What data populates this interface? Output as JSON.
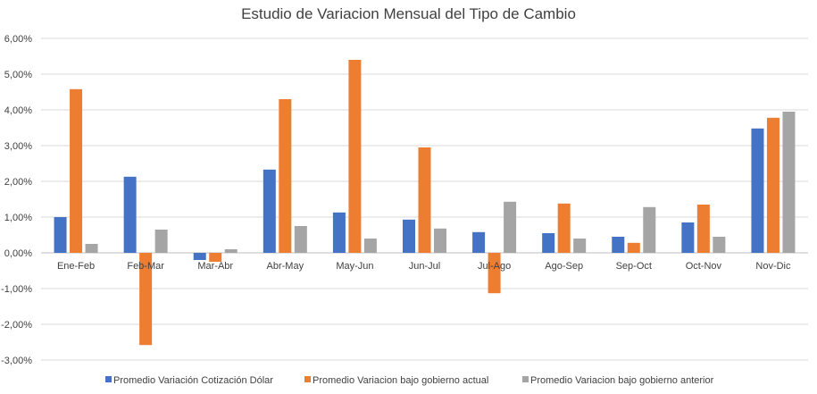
{
  "chart_data": {
    "type": "bar",
    "title": "Estudio de Variacion Mensual del Tipo de Cambio",
    "xlabel": "",
    "ylabel": "",
    "categories": [
      "Ene-Feb",
      "Feb-Mar",
      "Mar-Abr",
      "Abr-May",
      "May-Jun",
      "Jun-Jul",
      "Jul-Ago",
      "Ago-Sep",
      "Sep-Oct",
      "Oct-Nov",
      "Nov-Dic"
    ],
    "series": [
      {
        "name": "Promedio Variación Cotización Dólar",
        "color": "#4472C4",
        "values": [
          0.01,
          0.0213,
          -0.002,
          0.0233,
          0.0113,
          0.0093,
          0.0058,
          0.0055,
          0.0045,
          0.0085,
          0.0348
        ]
      },
      {
        "name": "Promedio Variacion bajo gobierno actual",
        "color": "#ED7D31",
        "values": [
          0.0458,
          -0.0258,
          -0.0025,
          0.043,
          0.054,
          0.0295,
          -0.0113,
          0.0138,
          0.0028,
          0.0135,
          0.0378
        ]
      },
      {
        "name": "Promedio Variacion bajo gobierno anterior",
        "color": "#A5A5A5",
        "values": [
          0.0025,
          0.0065,
          0.001,
          0.0075,
          0.004,
          0.0068,
          0.0143,
          0.004,
          0.0128,
          0.0045,
          0.0395
        ]
      }
    ],
    "ylim": [
      -0.03,
      0.06
    ],
    "yticks": [
      0.06,
      0.05,
      0.04,
      0.03,
      0.02,
      0.01,
      0.0,
      -0.01,
      -0.02,
      -0.03
    ],
    "ytick_labels": [
      "6,00%",
      "5,00%",
      "4,00%",
      "3,00%",
      "2,00%",
      "1,00%",
      "0,00%",
      "-1,00%",
      "-2,00%",
      "-3,00%"
    ],
    "grid": true,
    "legend_position": "bottom",
    "colors": {
      "gridline": "#D9D9D9",
      "axis": "#BFBFBF",
      "text": "#404040"
    }
  }
}
